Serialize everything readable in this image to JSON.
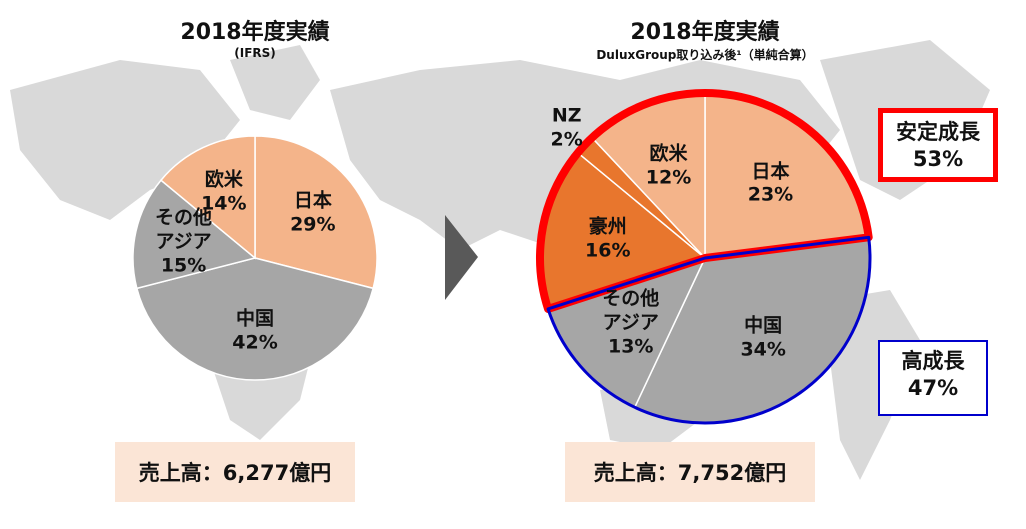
{
  "chart_data": [
    {
      "type": "pie",
      "title": "2018年度実績",
      "subtitle": "(IFRS)",
      "categories": [
        "日本",
        "中国",
        "その他アジア",
        "欧米"
      ],
      "values": [
        29,
        42,
        15,
        14
      ],
      "value_labels": [
        "29%",
        "42%",
        "15%",
        "14%"
      ],
      "colors": [
        "#f4b48a",
        "#a6a6a6",
        "#a6a6a6",
        "#f4b48a"
      ],
      "total": "売上高：6,277億円"
    },
    {
      "type": "pie",
      "title": "2018年度実績",
      "subtitle": "DuluxGroup取り込み後¹（単純合算）",
      "categories": [
        "日本",
        "中国",
        "その他アジア",
        "豪州",
        "NZ",
        "欧米"
      ],
      "values": [
        23,
        34,
        13,
        16,
        2,
        12
      ],
      "value_labels": [
        "23%",
        "34%",
        "13%",
        "16%",
        "2%",
        "12%"
      ],
      "colors": [
        "#f4b48a",
        "#a6a6a6",
        "#a6a6a6",
        "#e8762d",
        "#e8762d",
        "#f4b48a"
      ],
      "groups": [
        {
          "label": "安定成長",
          "value": 53,
          "value_label": "53%",
          "color": "#ff0000",
          "members": [
            3,
            4,
            5,
            0
          ]
        },
        {
          "label": "高成長",
          "value": 47,
          "value_label": "47%",
          "color": "#0000cc",
          "members": [
            1,
            2
          ]
        }
      ],
      "total": "売上高：7,752億円"
    }
  ]
}
